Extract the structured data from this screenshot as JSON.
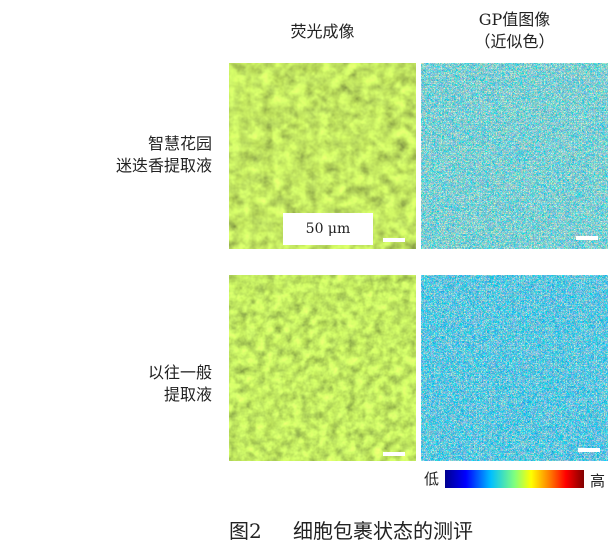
{
  "headers": {
    "fluorescence": "荧光成像",
    "gp_line1": "GP值图像",
    "gp_line2": "（近似色）"
  },
  "rows": [
    {
      "label_line1": "智慧花园",
      "label_line2": "迷迭香提取液"
    },
    {
      "label_line1": "以往一般",
      "label_line2": "提取液"
    }
  ],
  "scale_label": "50 μm",
  "colorbar": {
    "low_label": "低",
    "high_label": "高",
    "colormap": [
      "#00008f",
      "#0000ff",
      "#00bfff",
      "#7fff7f",
      "#ffff00",
      "#ff8000",
      "#ff0000",
      "#800000"
    ]
  },
  "caption": {
    "figure_number": "图2",
    "title": "细胞包裹状态的测评"
  }
}
